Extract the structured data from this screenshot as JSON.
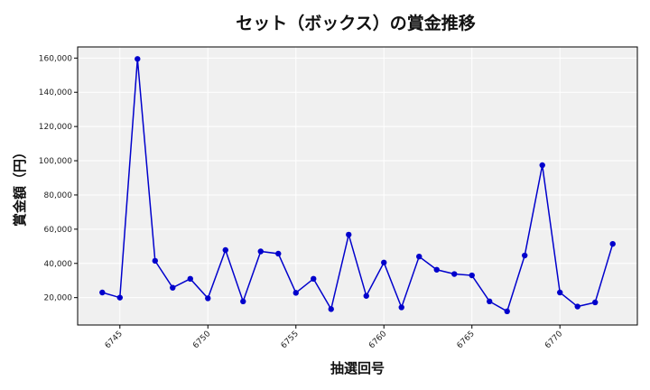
{
  "chart_data": {
    "type": "line",
    "title": "セット（ボックス）の賞金推移",
    "xlabel": "抽選回号",
    "ylabel": "賞金額（円）",
    "x": [
      6744,
      6745,
      6746,
      6747,
      6748,
      6749,
      6750,
      6751,
      6752,
      6753,
      6754,
      6755,
      6756,
      6757,
      6758,
      6759,
      6760,
      6761,
      6762,
      6763,
      6764,
      6765,
      6766,
      6767,
      6768,
      6769,
      6770,
      6771,
      6772,
      6773
    ],
    "series": [
      {
        "values": [
          23000,
          20000,
          159500,
          41500,
          25800,
          31000,
          19600,
          47800,
          17800,
          47000,
          45700,
          22800,
          31000,
          13300,
          56800,
          21000,
          40500,
          14300,
          44000,
          36300,
          33800,
          33000,
          17800,
          12000,
          44600,
          97400,
          23000,
          14800,
          17200,
          51400
        ],
        "color": "#0000cc"
      }
    ],
    "xlim": [
      6742.6,
      6774.4
    ],
    "ylim": [
      4000,
      166500
    ],
    "xticks": [
      6745,
      6750,
      6755,
      6760,
      6765,
      6770
    ],
    "yticks": [
      20000,
      40000,
      60000,
      80000,
      100000,
      120000,
      140000,
      160000
    ],
    "ytick_labels": [
      "20,000",
      "40,000",
      "60,000",
      "80,000",
      "100,000",
      "120,000",
      "140,000",
      "160,000"
    ],
    "grid": true,
    "plot_background": "#f0f0f0"
  }
}
